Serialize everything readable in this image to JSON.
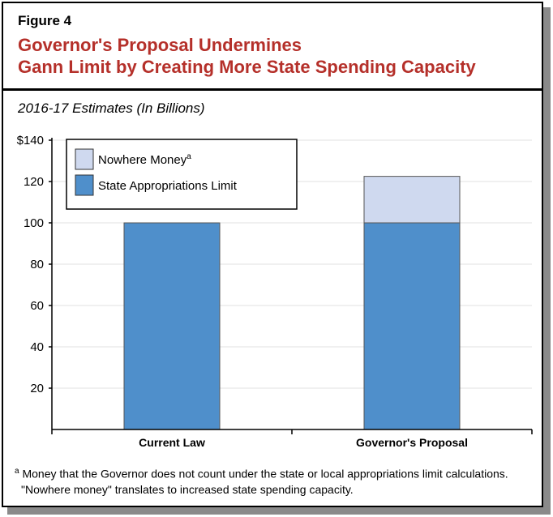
{
  "figure_label": "Figure 4",
  "title_line1": "Governor's Proposal Undermines",
  "title_line2": "Gann Limit by Creating More State Spending Capacity",
  "subtitle": "2016-17 Estimates (In Billions)",
  "footnote_marker": "a",
  "footnote_line1": "Money that the Governor does not count under the state or local appropriations limit calculations.",
  "footnote_line2": "\"Nowhere money\" translates to increased state spending capacity.",
  "chart_data": {
    "type": "bar",
    "stacked": true,
    "categories": [
      "Current Law",
      "Governor's Proposal"
    ],
    "series": [
      {
        "name": "State Appropriations Limit",
        "values": [
          100,
          100
        ],
        "color": "#4f8fcb"
      },
      {
        "name": "Nowhere Money",
        "name_superscript": "a",
        "values": [
          0,
          22.5
        ],
        "color": "#cfd9ef"
      }
    ],
    "ylim": [
      0,
      140
    ],
    "yticks": [
      20,
      40,
      60,
      80,
      100,
      120,
      140
    ],
    "ytick_labels": [
      "20",
      "40",
      "60",
      "80",
      "100",
      "120",
      "$140"
    ],
    "grid": true,
    "legend_position": "top-left"
  }
}
